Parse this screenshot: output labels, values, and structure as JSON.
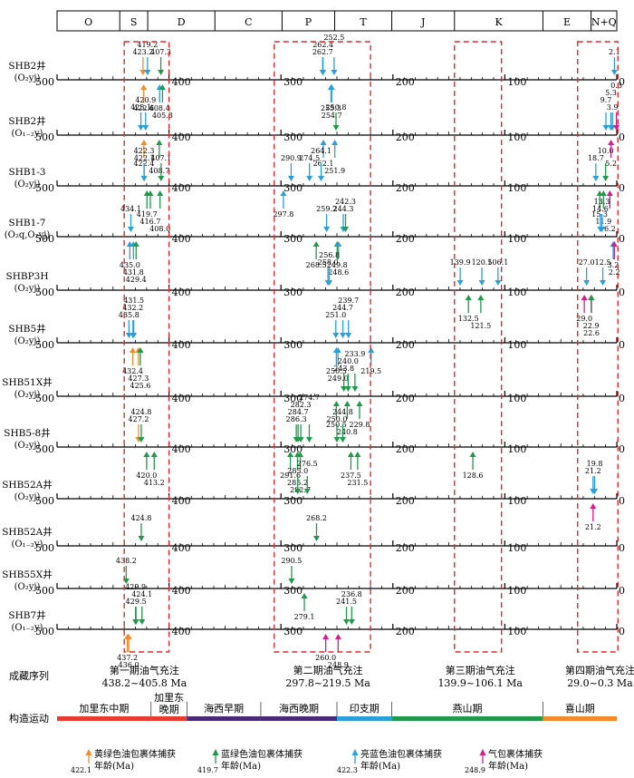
{
  "periods": [
    "O",
    "S",
    "D",
    "C",
    "P",
    "T",
    "J",
    "K",
    "E",
    "N+Q"
  ],
  "scale_labels": [
    "500",
    "400",
    "300",
    "200",
    "100",
    "0"
  ],
  "windows": [
    {
      "stage": "第一期油气充注",
      "range": "438.2~405.8 Ma"
    },
    {
      "stage": "第二期油气充注",
      "range": "297.8~219.5 Ma"
    },
    {
      "stage": "第三期油气充注",
      "range": "139.9~106.1 Ma"
    },
    {
      "stage": "第四期油气充注",
      "range": "29.0~0.3 Ma"
    }
  ],
  "sequence_label": "成藏序列",
  "tectonic_label": "构造运动",
  "tectonic": [
    {
      "name": "加里东中期",
      "from": 500,
      "to": 416,
      "color": "#e63b2e"
    },
    {
      "name": "加里东\n晚期",
      "from": 416,
      "to": 384,
      "color": "#e63b2e"
    },
    {
      "name": "海西早期",
      "from": 384,
      "to": 318,
      "color": "#4a2a78"
    },
    {
      "name": "海西晚期",
      "from": 318,
      "to": 250,
      "color": "#4a2a78"
    },
    {
      "name": "印支期",
      "from": 250,
      "to": 201,
      "color": "#2a9fd8"
    },
    {
      "name": "燕山期",
      "from": 201,
      "to": 66,
      "color": "#1f9a4a"
    },
    {
      "name": "喜山期",
      "from": 66,
      "to": 0,
      "color": "#f28a2b"
    }
  ],
  "legend": [
    {
      "type": "yellow",
      "color": "#f28a2b",
      "value": "422.1",
      "text": "黄绿色油包裹体捕获",
      "text2": "年龄(Ma)"
    },
    {
      "type": "blue",
      "color": "#1f9a4a",
      "value": "419.7",
      "text": "蓝绿色油包裹体捕获",
      "text2": "年龄(Ma)"
    },
    {
      "type": "bright",
      "color": "#2a9fd8",
      "value": "422.3",
      "text": "亮蓝色油包裹体捕获",
      "text2": "年龄(Ma)"
    },
    {
      "type": "gas",
      "color": "#d81b8c",
      "value": "248.9",
      "text": "气包裹体捕获",
      "text2": "年龄(Ma)"
    }
  ],
  "wells": [
    {
      "name": "SHB2井",
      "form": "(O₂yj)",
      "marks": [
        {
          "v": 423.2,
          "t": "yellow",
          "label": "423.2",
          "pos": "up"
        },
        {
          "v": 419.2,
          "t": "bright",
          "label": "419.2",
          "pos": "up"
        },
        {
          "v": 407.3,
          "t": "blue",
          "label": "407.3",
          "pos": "up"
        },
        {
          "v": 422.6,
          "t": "yellow",
          "label": "422.6",
          "pos": "down"
        },
        {
          "v": 408.4,
          "t": "bright",
          "label": "408.4",
          "pos": "down"
        },
        {
          "v": 405.8,
          "t": "blue",
          "label": "405.8",
          "pos": "down"
        },
        {
          "v": 262.7,
          "t": "blue",
          "label": "262.7",
          "pos": "up"
        },
        {
          "v": 262.4,
          "t": "bright",
          "label": "262.4",
          "pos": "up"
        },
        {
          "v": 252.5,
          "t": "bright",
          "label": "252.5",
          "pos": "up"
        },
        {
          "v": 255.3,
          "t": "bright",
          "label": "255.3",
          "pos": "down"
        },
        {
          "v": 254.7,
          "t": "bright",
          "label": "254.7",
          "pos": "down"
        },
        {
          "v": 2.1,
          "t": "bright",
          "label": "2.1",
          "pos": "up"
        }
      ]
    },
    {
      "name": "SHB2井",
      "form": "(O₁₋₂y)",
      "marks": [
        {
          "v": 425.1,
          "t": "bright",
          "label": "425.1",
          "pos": "up"
        },
        {
          "v": 420.9,
          "t": "bright",
          "label": "420.9",
          "pos": "up"
        },
        {
          "v": 422.4,
          "t": "yellow",
          "label": "422.4",
          "pos": "down"
        },
        {
          "v": 408.7,
          "t": "blue",
          "label": "408.7",
          "pos": "down"
        },
        {
          "v": 250.8,
          "t": "blue",
          "label": "250.8",
          "pos": "up"
        },
        {
          "v": 262.1,
          "t": "bright",
          "label": "262.1",
          "pos": "down"
        },
        {
          "v": 251.9,
          "t": "bright",
          "label": "251.9",
          "pos": "down"
        },
        {
          "v": 3.9,
          "t": "bright",
          "label": "3.9",
          "pos": "up"
        },
        {
          "v": 9.7,
          "t": "bright",
          "label": "9.7",
          "pos": "up"
        },
        {
          "v": 5.3,
          "t": "bright",
          "label": "5.3",
          "pos": "up"
        },
        {
          "v": 0.3,
          "t": "gas",
          "label": "0.3",
          "pos": "up"
        },
        {
          "v": 5.2,
          "t": "gas",
          "label": "5.2",
          "pos": "down"
        }
      ]
    },
    {
      "name": "SHB1-3",
      "form": "(O₂yj)",
      "marks": [
        {
          "v": 422.1,
          "t": "yellow",
          "label": "422.1",
          "pos": "up"
        },
        {
          "v": 422.3,
          "t": "bright",
          "label": "422.3",
          "pos": "up"
        },
        {
          "v": 407.1,
          "t": "blue",
          "label": "407.1",
          "pos": "up"
        },
        {
          "v": 419.7,
          "t": "blue",
          "label": "419.7",
          "pos": "down"
        },
        {
          "v": 416.7,
          "t": "blue",
          "label": "416.7",
          "pos": "down"
        },
        {
          "v": 408.0,
          "t": "blue",
          "label": "408.0",
          "pos": "down"
        },
        {
          "v": 290.9,
          "t": "bright",
          "label": "290.9",
          "pos": "up"
        },
        {
          "v": 274.5,
          "t": "bright",
          "label": "274.5",
          "pos": "up"
        },
        {
          "v": 264.1,
          "t": "bright",
          "label": "264.1",
          "pos": "up"
        },
        {
          "v": 297.8,
          "t": "bright",
          "label": "297.8",
          "pos": "down"
        },
        {
          "v": 18.7,
          "t": "bright",
          "label": "18.7",
          "pos": "up"
        },
        {
          "v": 10.0,
          "t": "blue",
          "label": "10.0",
          "pos": "up"
        },
        {
          "v": 15.3,
          "t": "blue",
          "label": "15.3",
          "pos": "down"
        },
        {
          "v": 11.9,
          "t": "blue",
          "label": "11.9",
          "pos": "down"
        },
        {
          "v": 6.2,
          "t": "gas",
          "label": "6.2",
          "pos": "down"
        }
      ]
    },
    {
      "name": "SHB1-7",
      "form": "(O₂q,O₂yj)",
      "marks": [
        {
          "v": 434.1,
          "t": "bright",
          "label": "434.1",
          "pos": "up"
        },
        {
          "v": 435.0,
          "t": "bright",
          "label": "435.0",
          "pos": "down"
        },
        {
          "v": 431.8,
          "t": "bright",
          "label": "431.8",
          "pos": "down"
        },
        {
          "v": 429.4,
          "t": "blue",
          "label": "429.4",
          "pos": "down"
        },
        {
          "v": 259.2,
          "t": "bright",
          "label": "259.2",
          "pos": "up"
        },
        {
          "v": 244.3,
          "t": "bright",
          "label": "244.3",
          "pos": "up"
        },
        {
          "v": 242.3,
          "t": "blue",
          "label": "242.3",
          "pos": "up"
        },
        {
          "v": 268.5,
          "t": "blue",
          "label": "268.5",
          "pos": "down"
        },
        {
          "v": 249.8,
          "t": "blue",
          "label": "249.8",
          "pos": "down"
        },
        {
          "v": 248.6,
          "t": "bright",
          "label": "248.6",
          "pos": "down"
        },
        {
          "v": 14.6,
          "t": "bright",
          "label": "14.6",
          "pos": "up"
        },
        {
          "v": 13.3,
          "t": "bright",
          "label": "13.3",
          "pos": "up"
        },
        {
          "v": 3.2,
          "t": "bright",
          "label": "3.2",
          "pos": "down"
        },
        {
          "v": 2.2,
          "t": "gas",
          "label": "2.2",
          "pos": "down"
        }
      ]
    },
    {
      "name": "SHBP3H",
      "form": "(O₂yj)",
      "marks": [
        {
          "v": 258.0,
          "t": "bright",
          "label": "258.0",
          "pos": "up"
        },
        {
          "v": 256.8,
          "t": "bright",
          "label": "256.8",
          "pos": "up"
        },
        {
          "v": 139.9,
          "t": "bright",
          "label": "139.9",
          "pos": "up"
        },
        {
          "v": 120.5,
          "t": "bright",
          "label": "120.5",
          "pos": "up"
        },
        {
          "v": 106.1,
          "t": "bright",
          "label": "106.1",
          "pos": "up"
        },
        {
          "v": 132.5,
          "t": "blue",
          "label": "132.5",
          "pos": "down"
        },
        {
          "v": 121.5,
          "t": "blue",
          "label": "121.5",
          "pos": "down"
        },
        {
          "v": 27.0,
          "t": "bright",
          "label": "27.0",
          "pos": "up"
        },
        {
          "v": 12.5,
          "t": "bright",
          "label": "12.5",
          "pos": "up"
        },
        {
          "v": 29.0,
          "t": "gas",
          "label": "29.0",
          "pos": "down"
        },
        {
          "v": 22.9,
          "t": "gas",
          "label": "22.9",
          "pos": "down"
        },
        {
          "v": 22.6,
          "t": "blue",
          "label": "22.6",
          "pos": "down"
        }
      ]
    },
    {
      "name": "SHB5井",
      "form": "(O₂yj)",
      "marks": [
        {
          "v": 435.8,
          "t": "bright",
          "label": "435.8",
          "pos": "up"
        },
        {
          "v": 432.2,
          "t": "bright",
          "label": "432.2",
          "pos": "up"
        },
        {
          "v": 431.5,
          "t": "bright",
          "label": "431.5",
          "pos": "up"
        },
        {
          "v": 432.4,
          "t": "yellow",
          "label": "432.4",
          "pos": "down"
        },
        {
          "v": 427.3,
          "t": "yellow",
          "label": "427.3",
          "pos": "down"
        },
        {
          "v": 425.6,
          "t": "blue",
          "label": "425.6",
          "pos": "down"
        },
        {
          "v": 251.0,
          "t": "bright",
          "label": "251.0",
          "pos": "up"
        },
        {
          "v": 244.7,
          "t": "bright",
          "label": "244.7",
          "pos": "up"
        },
        {
          "v": 239.7,
          "t": "bright",
          "label": "239.7",
          "pos": "up"
        },
        {
          "v": 250.5,
          "t": "bright",
          "label": "250.5",
          "pos": "down"
        },
        {
          "v": 249.0,
          "t": "bright",
          "label": "249.0",
          "pos": "down"
        },
        {
          "v": 219.5,
          "t": "bright",
          "label": "219.5",
          "pos": "down"
        }
      ]
    },
    {
      "name": "SHB51X井",
      "form": "(O₂yj)",
      "marks": [
        {
          "v": 243.8,
          "t": "blue",
          "label": "243.8",
          "pos": "up"
        },
        {
          "v": 240.0,
          "t": "blue",
          "label": "240.0",
          "pos": "up"
        },
        {
          "v": 233.9,
          "t": "blue",
          "label": "233.9",
          "pos": "up"
        },
        {
          "v": 250.5,
          "t": "blue",
          "label": "250.5",
          "pos": "down"
        },
        {
          "v": 240.8,
          "t": "blue",
          "label": "240.8",
          "pos": "down"
        },
        {
          "v": 229.8,
          "t": "blue",
          "label": "229.8",
          "pos": "down"
        }
      ]
    },
    {
      "name": "SHB5-8井",
      "form": "(O₂yj)",
      "marks": [
        {
          "v": 427.2,
          "t": "yellow",
          "label": "427.2",
          "pos": "up"
        },
        {
          "v": 424.8,
          "t": "blue",
          "label": "424.8",
          "pos": "up"
        },
        {
          "v": 420.0,
          "t": "blue",
          "label": "420.0",
          "pos": "down"
        },
        {
          "v": 413.2,
          "t": "blue",
          "label": "413.2",
          "pos": "down"
        },
        {
          "v": 286.3,
          "t": "blue",
          "label": "286.3",
          "pos": "up"
        },
        {
          "v": 284.7,
          "t": "blue",
          "label": "284.7",
          "pos": "up"
        },
        {
          "v": 282.3,
          "t": "blue",
          "label": "282.3",
          "pos": "up"
        },
        {
          "v": 274.7,
          "t": "blue",
          "label": "274.7",
          "pos": "up"
        },
        {
          "v": 250.0,
          "t": "blue",
          "label": "250.0",
          "pos": "up"
        },
        {
          "v": 244.8,
          "t": "blue",
          "label": "244.8",
          "pos": "up"
        },
        {
          "v": 291.6,
          "t": "blue",
          "label": "291.6",
          "pos": "down"
        },
        {
          "v": 285.2,
          "t": "blue",
          "label": "285.2",
          "pos": "down"
        },
        {
          "v": 282.7,
          "t": "blue",
          "label": "282.7",
          "pos": "down"
        },
        {
          "v": 237.5,
          "t": "blue",
          "label": "237.5",
          "pos": "down"
        },
        {
          "v": 231.5,
          "t": "blue",
          "label": "231.5",
          "pos": "down"
        },
        {
          "v": 128.6,
          "t": "blue",
          "label": "128.6",
          "pos": "down"
        }
      ]
    },
    {
      "name": "SHB52A井",
      "form": "(O₂yj)",
      "marks": [
        {
          "v": 285.0,
          "t": "blue",
          "label": "285.0",
          "pos": "up"
        },
        {
          "v": 276.5,
          "t": "blue",
          "label": "276.5",
          "pos": "up"
        },
        {
          "v": 21.2,
          "t": "bright",
          "label": "21.2",
          "pos": "up"
        },
        {
          "v": 19.8,
          "t": "bright",
          "label": "19.8",
          "pos": "up"
        },
        {
          "v": 21.2,
          "t": "gas",
          "label": "21.2",
          "pos": "down"
        }
      ]
    },
    {
      "name": "SHB52A井",
      "form": "(O₁₋₂y)",
      "marks": [
        {
          "v": 424.8,
          "t": "blue",
          "label": "424.8",
          "pos": "up"
        },
        {
          "v": 268.2,
          "t": "blue",
          "label": "268.2",
          "pos": "up"
        }
      ]
    },
    {
      "name": "SHB55X井",
      "form": "(O₂yj)",
      "marks": [
        {
          "v": 438.2,
          "t": "blue",
          "label": "438.2",
          "pos": "up"
        },
        {
          "v": 290.5,
          "t": "blue",
          "label": "290.5",
          "pos": "up"
        },
        {
          "v": 279.1,
          "t": "blue",
          "label": "279.1",
          "pos": "down"
        }
      ]
    },
    {
      "name": "SHB7井",
      "form": "(O₁₋₂y)",
      "marks": [
        {
          "v": 429.5,
          "t": "blue",
          "label": "429.5",
          "pos": "up"
        },
        {
          "v": 424.1,
          "t": "blue",
          "label": "424.1",
          "pos": "up"
        },
        {
          "v": 429.9,
          "t": "blue",
          "label": "429.9",
          "pos": "up"
        },
        {
          "v": 437.2,
          "t": "yellow",
          "label": "437.2",
          "pos": "down"
        },
        {
          "v": 436.0,
          "t": "yellow",
          "label": "436.0",
          "pos": "down"
        },
        {
          "v": 241.5,
          "t": "blue",
          "label": "241.5",
          "pos": "up"
        },
        {
          "v": 236.8,
          "t": "blue",
          "label": "236.8",
          "pos": "up"
        },
        {
          "v": 260.0,
          "t": "gas",
          "label": "260.0",
          "pos": "down"
        },
        {
          "v": 248.9,
          "t": "gas",
          "label": "248.9",
          "pos": "down"
        }
      ]
    }
  ]
}
